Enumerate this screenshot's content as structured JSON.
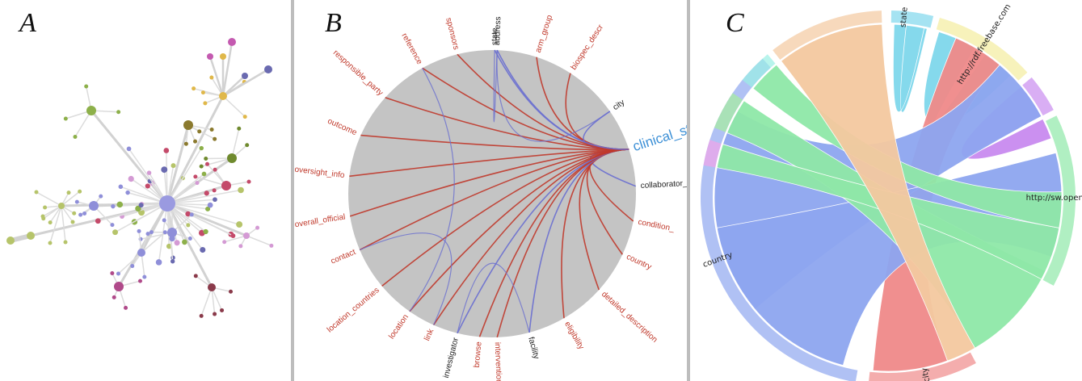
{
  "panels": {
    "a_label": "A",
    "b_label": "B",
    "c_label": "C"
  },
  "colors": {
    "divider": "#bdbdbd",
    "chord_red": "#c0392b",
    "chord_blue": "#6a6fd0",
    "label_red": "#c0392b",
    "label_dark": "#222222",
    "highlight_label": "#3b8fd6",
    "circle_fill": "#c4c4c4"
  },
  "panel_b": {
    "highlight": "clinical_study",
    "labels": [
      {
        "text": "address",
        "color": "dark"
      },
      {
        "text": "arm_group",
        "color": "red"
      },
      {
        "text": "biospec_descr",
        "color": "red"
      },
      {
        "text": "city",
        "color": "dark"
      },
      {
        "text": "clinical_study",
        "color": "highlight"
      },
      {
        "text": "collaborator_",
        "color": "dark"
      },
      {
        "text": "condition_",
        "color": "red"
      },
      {
        "text": "country",
        "color": "red"
      },
      {
        "text": "detailed_description",
        "color": "red"
      },
      {
        "text": "eligibility",
        "color": "red"
      },
      {
        "text": "facility",
        "color": "dark"
      },
      {
        "text": "intervention",
        "color": "red"
      },
      {
        "text": "browse",
        "color": "red"
      },
      {
        "text": "investigator",
        "color": "dark"
      },
      {
        "text": "link",
        "color": "red"
      },
      {
        "text": "location",
        "color": "red"
      },
      {
        "text": "location_countries",
        "color": "red"
      },
      {
        "text": "contact",
        "color": "red"
      },
      {
        "text": "overall_official",
        "color": "red"
      },
      {
        "text": "oversight_info",
        "color": "red"
      },
      {
        "text": "outcome",
        "color": "red"
      },
      {
        "text": "responsible_party",
        "color": "red"
      },
      {
        "text": "reference",
        "color": "red"
      },
      {
        "text": "sponsors",
        "color": "red"
      },
      {
        "text": "state",
        "color": "dark"
      }
    ]
  },
  "panel_c": {
    "groups": [
      {
        "name": "state",
        "color": "#7fd7ec"
      },
      {
        "name": "http://rdf.freebase.com",
        "color": "#f3ec9e"
      },
      {
        "name": "",
        "color": "#c98bf0"
      },
      {
        "name": "http://sw.opencyc.org",
        "color": "#8fe8a8"
      },
      {
        "name": "city",
        "color": "#f08a8a"
      },
      {
        "name": "country",
        "color": "#8ea6f0"
      },
      {
        "name": "",
        "color": "#a6ee9c"
      },
      {
        "name": "",
        "color": "#f2a2e8"
      },
      {
        "name": "",
        "color": "#9af0e4"
      },
      {
        "name": "",
        "color": "#f4c9a0"
      }
    ]
  }
}
